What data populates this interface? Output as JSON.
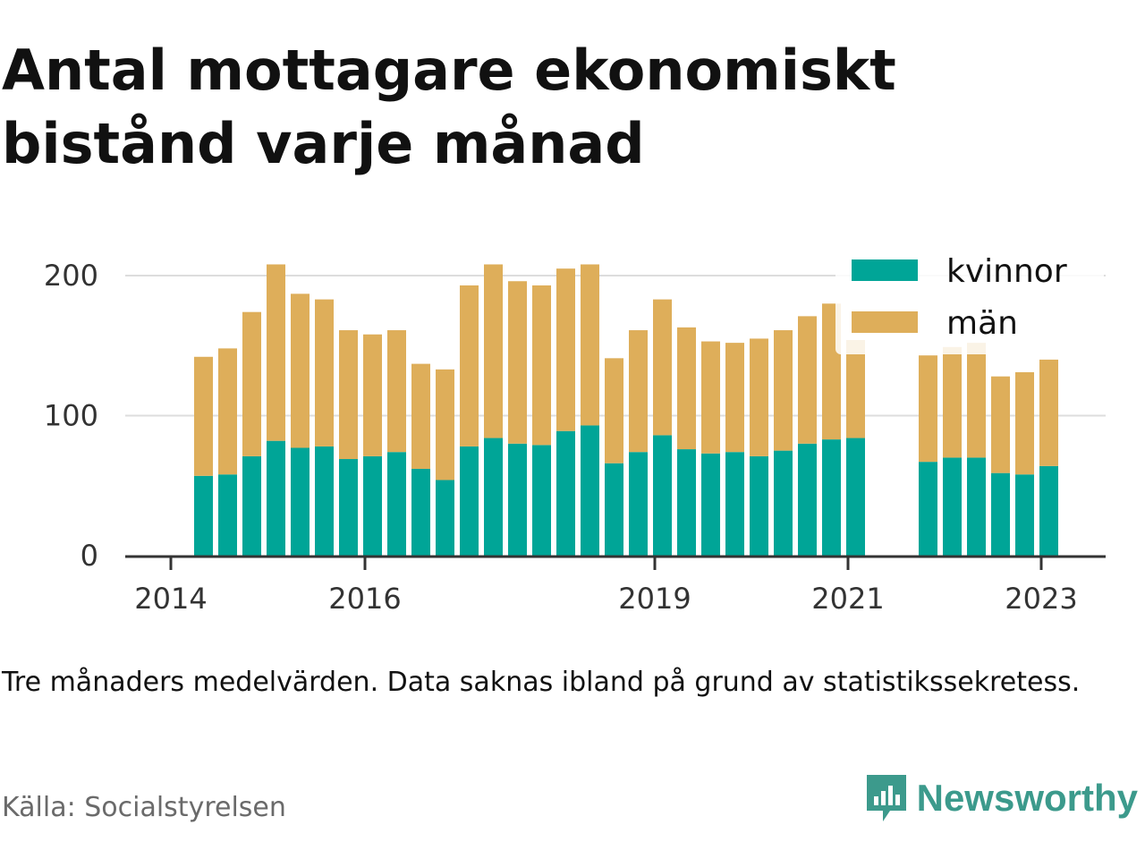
{
  "title": "Antal mottagare ekonomiskt bistånd varje månad",
  "note": "Tre månaders medelvärden. Data saknas ibland på grund av statistikssekretess.",
  "source": "Källa: Socialstyrelsen",
  "brand": {
    "name": "Newsworthy",
    "icon": "newsworthy-logo-icon",
    "color": "#3c9a8c"
  },
  "colors": {
    "kvinnor": "#00a597",
    "man": "#deae5a",
    "grid": "#dddddd",
    "axis": "#333333",
    "tick_text": "#333333"
  },
  "chart_data": {
    "type": "bar",
    "stacked": true,
    "title": "Antal mottagare ekonomiskt bistånd varje månad",
    "xlabel": "",
    "ylabel": "",
    "ylim": [
      0,
      210
    ],
    "yticks": [
      0,
      100,
      200
    ],
    "xticks": [
      "2014",
      "2016",
      "2019",
      "2021",
      "2023"
    ],
    "grid": true,
    "legend_position": "top-right",
    "series": [
      {
        "name": "kvinnor",
        "values": [
          57,
          58,
          71,
          82,
          77,
          78,
          69,
          71,
          74,
          62,
          54,
          78,
          84,
          80,
          79,
          89,
          93,
          66,
          74,
          86,
          76,
          73,
          74,
          71,
          75,
          80,
          83,
          84,
          null,
          null,
          67,
          70,
          70,
          59,
          58,
          64
        ]
      },
      {
        "name": "män",
        "values": [
          85,
          90,
          103,
          126,
          110,
          105,
          92,
          87,
          87,
          75,
          79,
          115,
          124,
          116,
          114,
          116,
          115,
          75,
          87,
          97,
          87,
          80,
          78,
          84,
          86,
          91,
          97,
          70,
          null,
          null,
          76,
          79,
          82,
          69,
          73,
          76
        ]
      }
    ]
  }
}
